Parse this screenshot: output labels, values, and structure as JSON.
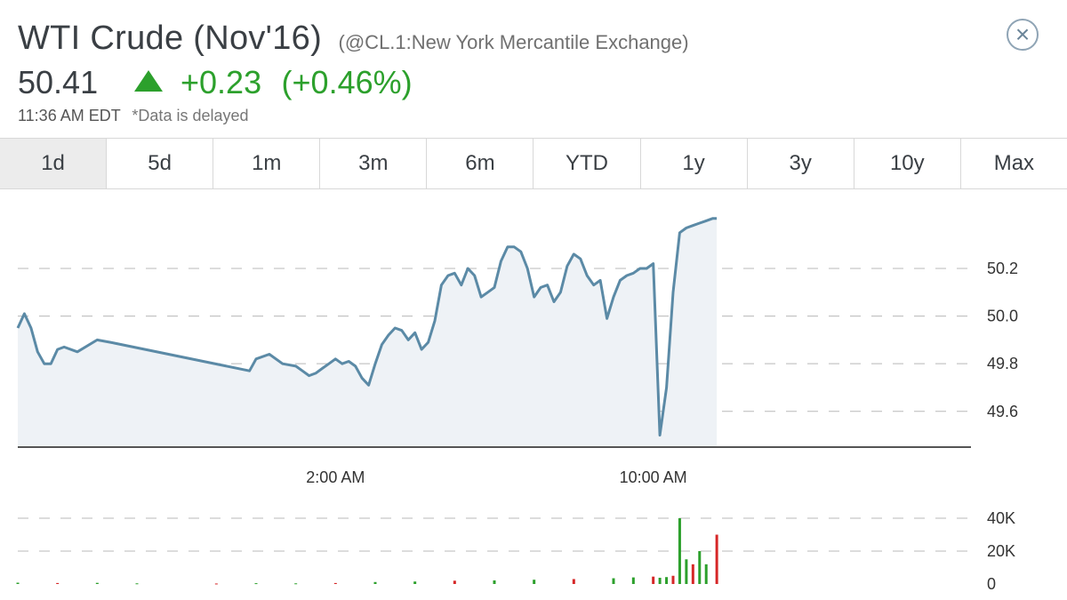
{
  "header": {
    "title": "WTI Crude (Nov'16)",
    "subtitle": "(@CL.1:New York Mercantile Exchange)",
    "price": "50.41",
    "change": "+0.23",
    "change_pct": "(+0.46%)",
    "time": "11:36 AM EDT",
    "delayed_note": "*Data is delayed",
    "up_color": "#2ca02c",
    "close_icon": "close-circle-icon",
    "close_symbol": "×"
  },
  "tabs": [
    {
      "label": "1d",
      "active": true
    },
    {
      "label": "5d",
      "active": false
    },
    {
      "label": "1m",
      "active": false
    },
    {
      "label": "3m",
      "active": false
    },
    {
      "label": "6m",
      "active": false
    },
    {
      "label": "YTD",
      "active": false
    },
    {
      "label": "1y",
      "active": false
    },
    {
      "label": "3y",
      "active": false
    },
    {
      "label": "10y",
      "active": false
    },
    {
      "label": "Max",
      "active": false
    }
  ],
  "chart_data": [
    {
      "type": "area",
      "series": [
        {
          "x": [
            "6:00 PM",
            "6:10 PM",
            "6:20 PM",
            "6:30 PM",
            "6:40 PM",
            "6:50 PM",
            "7:00 PM",
            "7:10 PM",
            "7:30 PM",
            "8:00 PM",
            "8:20 PM",
            "11:50 PM",
            "12:00 AM",
            "12:20 AM",
            "12:40 AM",
            "1:00 AM",
            "1:10 AM",
            "1:20 AM",
            "1:30 AM",
            "1:40 AM",
            "1:50 AM",
            "2:00 AM",
            "2:10 AM",
            "2:20 AM",
            "2:30 AM",
            "2:40 AM",
            "2:50 AM",
            "3:00 AM",
            "3:10 AM",
            "3:20 AM",
            "3:30 AM",
            "3:40 AM",
            "3:50 AM",
            "4:00 AM",
            "4:10 AM",
            "4:20 AM",
            "4:30 AM",
            "4:40 AM",
            "4:50 AM",
            "5:00 AM",
            "5:10 AM",
            "5:20 AM",
            "5:30 AM",
            "5:40 AM",
            "5:50 AM",
            "6:00 AM",
            "6:10 AM",
            "6:20 AM",
            "6:30 AM",
            "6:40 AM",
            "6:50 AM",
            "7:00 AM",
            "7:10 AM",
            "7:20 AM",
            "7:30 AM",
            "7:40 AM",
            "7:50 AM",
            "8:00 AM",
            "8:10 AM",
            "8:20 AM",
            "8:30 AM",
            "8:40 AM",
            "8:50 AM",
            "9:00 AM",
            "9:10 AM",
            "9:20 AM",
            "9:30 AM",
            "9:40 AM",
            "9:50 AM",
            "10:00 AM",
            "10:10 AM",
            "10:20 AM",
            "10:30 AM",
            "10:40 AM",
            "10:50 AM",
            "11:00 AM",
            "11:10 AM",
            "11:20 AM",
            "11:30 AM",
            "11:36 AM"
          ],
          "values": [
            49.95,
            50.01,
            49.95,
            49.85,
            49.8,
            49.8,
            49.86,
            49.87,
            49.85,
            49.9,
            49.89,
            49.77,
            49.82,
            49.84,
            49.8,
            49.79,
            49.77,
            49.75,
            49.76,
            49.78,
            49.8,
            49.82,
            49.8,
            49.81,
            49.79,
            49.74,
            49.71,
            49.8,
            49.88,
            49.92,
            49.95,
            49.94,
            49.9,
            49.93,
            49.86,
            49.89,
            49.98,
            50.13,
            50.17,
            50.18,
            50.13,
            50.2,
            50.17,
            50.08,
            50.1,
            50.12,
            50.23,
            50.29,
            50.29,
            50.27,
            50.2,
            50.08,
            50.12,
            50.13,
            50.06,
            50.1,
            50.21,
            50.26,
            50.24,
            50.17,
            50.13,
            50.15,
            49.99,
            50.08,
            50.15,
            50.17,
            50.18,
            50.2,
            50.2,
            50.22,
            49.5,
            49.7,
            50.1,
            50.35,
            50.37,
            50.38,
            50.39,
            50.4,
            50.41,
            50.41
          ]
        }
      ],
      "ylim": [
        49.45,
        50.42
      ],
      "yticks": [
        "49.6",
        "49.8",
        "50.0",
        "50.2"
      ],
      "ytick_values": [
        49.6,
        49.8,
        50.0,
        50.2
      ],
      "xticks": [
        "2:00 AM",
        "10:00 AM"
      ],
      "xlim": [
        "6:00 PM",
        "6:00 PM"
      ],
      "grid": true,
      "line_color": "#5b8aa6",
      "fill_color": "#eef2f6"
    },
    {
      "type": "bar",
      "series": [
        {
          "x": [
            "6:00 PM",
            "7:00 PM",
            "8:00 PM",
            "9:00 PM",
            "11:00 PM",
            "12:00 AM",
            "1:00 AM",
            "2:00 AM",
            "3:00 AM",
            "4:00 AM",
            "5:00 AM",
            "6:00 AM",
            "7:00 AM",
            "8:00 AM",
            "9:00 AM",
            "9:30 AM",
            "10:00 AM",
            "10:10 AM",
            "10:20 AM",
            "10:30 AM",
            "10:40 AM",
            "10:50 AM",
            "11:00 AM",
            "11:10 AM",
            "11:20 AM",
            "11:36 AM"
          ],
          "values": [
            800,
            600,
            700,
            400,
            300,
            500,
            400,
            600,
            1200,
            1500,
            2000,
            2200,
            2600,
            3000,
            3500,
            4000,
            4500,
            3800,
            4200,
            5000,
            40000,
            15000,
            12000,
            20000,
            12000,
            30000
          ]
        }
      ],
      "ylim": [
        0,
        40000
      ],
      "yticks": [
        "0",
        "20K",
        "40K"
      ],
      "ytick_values": [
        0,
        20000,
        40000
      ],
      "grid": true,
      "up_color": "#2ca02c",
      "down_color": "#d62728"
    }
  ]
}
